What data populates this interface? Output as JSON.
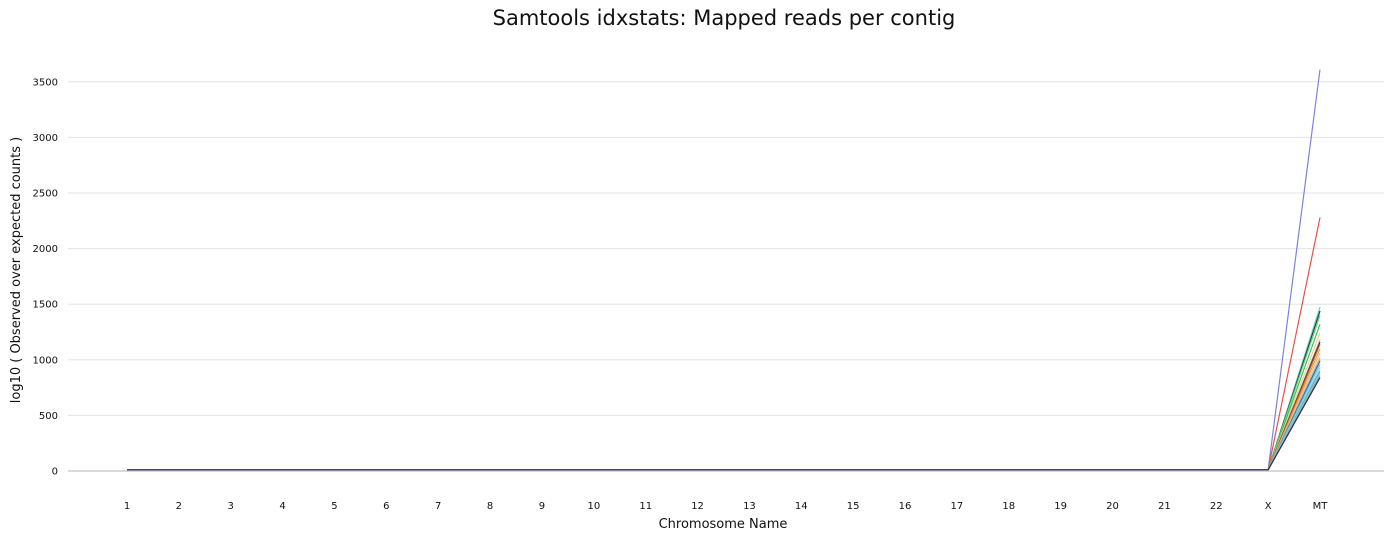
{
  "chart_data": {
    "type": "line",
    "title": "Samtools idxstats: Mapped reads per contig",
    "xlabel": "Chromosome Name",
    "ylabel": "log10 ( Observed over expected counts )",
    "categories": [
      "1",
      "2",
      "3",
      "4",
      "5",
      "6",
      "7",
      "8",
      "9",
      "10",
      "11",
      "12",
      "13",
      "14",
      "15",
      "16",
      "17",
      "18",
      "19",
      "20",
      "21",
      "22",
      "X",
      "MT"
    ],
    "ylim": [
      0,
      3650
    ],
    "yticks": [
      0,
      500,
      1000,
      1500,
      2000,
      2500,
      3000,
      3500
    ],
    "grid": true,
    "legend": "none",
    "baseline_value": 10,
    "series": [
      {
        "color": "#7b83de",
        "mt": 3610
      },
      {
        "color": "#e5534b",
        "mt": 2280
      },
      {
        "color": "#5bd4d4",
        "mt": 1475
      },
      {
        "color": "#f2c94c",
        "mt": 1440
      },
      {
        "color": "#2f3b3f",
        "mt": 1440
      },
      {
        "color": "#5fd68a",
        "mt": 1400
      },
      {
        "color": "#3fbf5f",
        "mt": 1320
      },
      {
        "color": "#f4d67a",
        "mt": 1240
      },
      {
        "color": "#c9a0dc",
        "mt": 1180
      },
      {
        "color": "#333333",
        "mt": 1160
      },
      {
        "color": "#b5651d",
        "mt": 1140
      },
      {
        "color": "#e89c3f",
        "mt": 1100
      },
      {
        "color": "#f0b8a0",
        "mt": 1060
      },
      {
        "color": "#e6a86a",
        "mt": 1020
      },
      {
        "color": "#a8d08d",
        "mt": 1000
      },
      {
        "color": "#2a6fb0",
        "mt": 990
      },
      {
        "color": "#6cc7e0",
        "mt": 960
      },
      {
        "color": "#9ad1f0",
        "mt": 930
      },
      {
        "color": "#44aabb",
        "mt": 900
      },
      {
        "color": "#8fd3c4",
        "mt": 880
      },
      {
        "color": "#9e9e9e",
        "mt": 860
      },
      {
        "color": "#2b2b4f",
        "mt": 840
      }
    ]
  }
}
